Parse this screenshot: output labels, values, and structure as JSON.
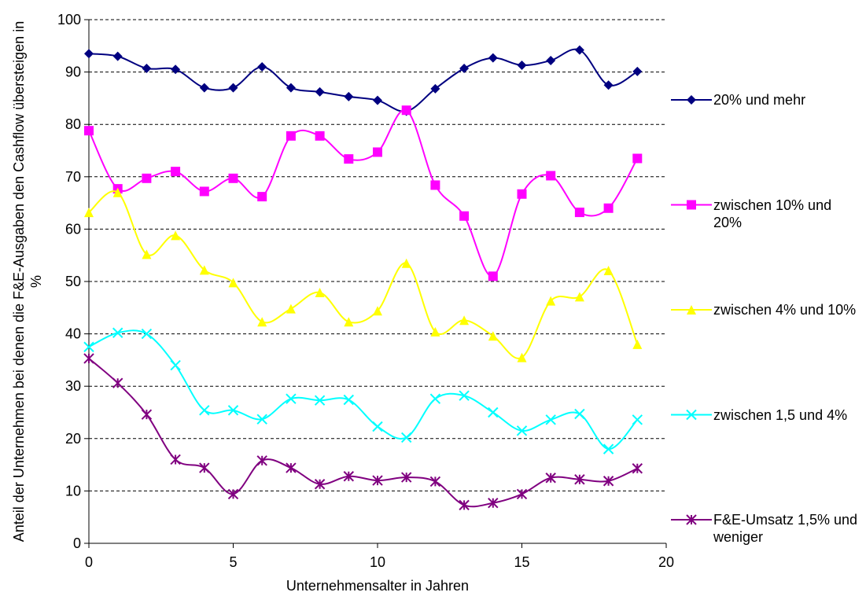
{
  "chart_data": {
    "type": "line",
    "x_label": "Unternehmensalter in Jahren",
    "y_label": "Anteil der Unternehmen bei denen die F&E-Ausgaben den Cashflow übersteigen in %",
    "x": [
      0,
      1,
      2,
      3,
      4,
      5,
      6,
      7,
      8,
      9,
      10,
      11,
      12,
      13,
      14,
      15,
      16,
      17,
      18,
      19
    ],
    "xlim": [
      0,
      20
    ],
    "xticks": [
      0,
      5,
      10,
      15,
      20
    ],
    "ylim": [
      0,
      100
    ],
    "yticks": [
      0,
      10,
      20,
      30,
      40,
      50,
      60,
      70,
      80,
      90,
      100
    ],
    "grid": true,
    "smooth": true,
    "legend": "right",
    "series": [
      {
        "name": "20% und mehr",
        "color": "#000080",
        "marker": "diamond",
        "values": [
          93.5,
          93,
          90.7,
          90.5,
          87,
          87,
          91,
          87,
          86.2,
          85.3,
          84.6,
          82.5,
          86.8,
          90.7,
          92.7,
          91.3,
          92.2,
          94.2,
          87.5,
          90.1
        ]
      },
      {
        "name": "zwischen 10% und 20%",
        "color": "#FF00FF",
        "marker": "square",
        "values": [
          78.8,
          67.7,
          69.7,
          71,
          67.2,
          69.7,
          66.2,
          77.8,
          77.8,
          73.4,
          74.7,
          82.7,
          68.4,
          62.5,
          51,
          66.7,
          70.2,
          63.2,
          64,
          73.5
        ]
      },
      {
        "name": "zwischen 4% und 10%",
        "color": "#FFFF00",
        "marker": "triangle",
        "values": [
          63.2,
          67,
          55.2,
          58.8,
          52.2,
          49.8,
          42.3,
          44.8,
          47.9,
          42.3,
          44.4,
          53.5,
          40.4,
          42.6,
          39.6,
          35.5,
          46.3,
          47.1,
          52.1,
          38
        ]
      },
      {
        "name": "zwischen 1,5 und 4%",
        "color": "#00FFFF",
        "marker": "x",
        "values": [
          37.5,
          40.2,
          40,
          34,
          25.4,
          25.4,
          23.7,
          27.6,
          27.3,
          27.4,
          22.3,
          20.2,
          27.6,
          28.2,
          25,
          21.5,
          23.6,
          24.7,
          18,
          23.6
        ]
      },
      {
        "name": "F&E-Umsatz 1,5% und weniger",
        "color": "#800080",
        "marker": "star",
        "values": [
          35.3,
          30.6,
          24.6,
          16,
          14.4,
          9.4,
          15.8,
          14.4,
          11.3,
          12.8,
          12,
          12.6,
          11.8,
          7.3,
          7.7,
          9.4,
          12.5,
          12.2,
          11.9,
          14.3
        ]
      }
    ]
  }
}
